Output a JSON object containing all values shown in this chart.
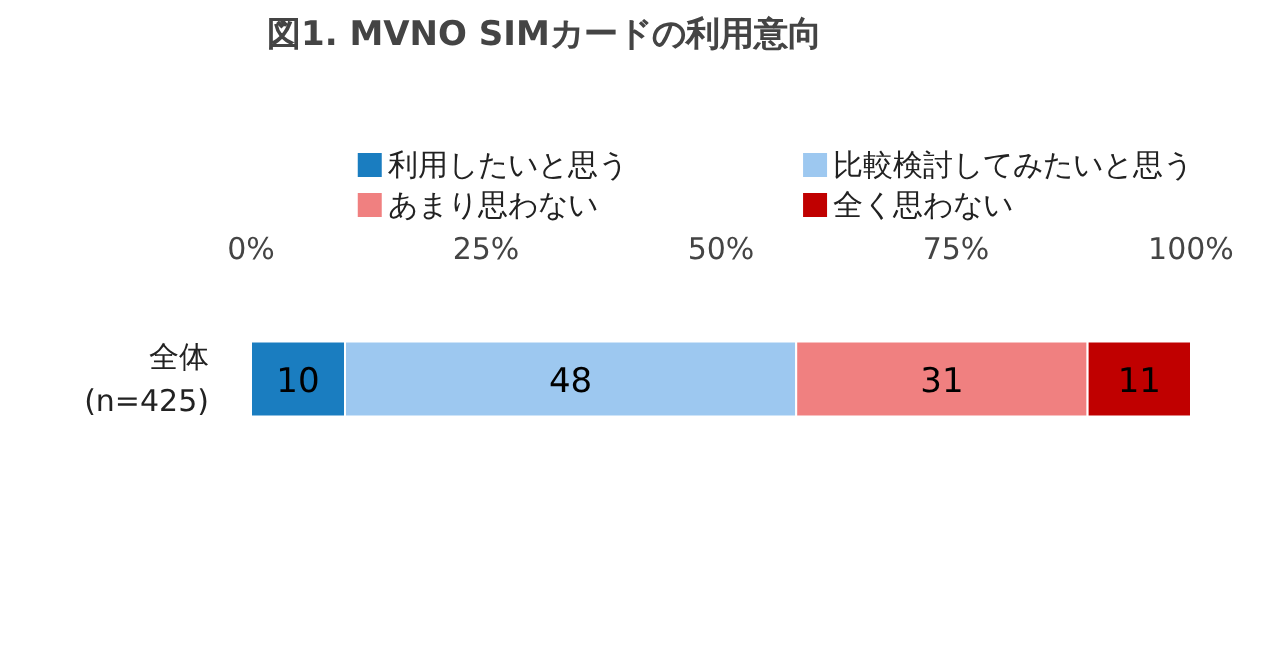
{
  "chart_data": {
    "type": "bar",
    "orientation": "horizontal",
    "stacked": true,
    "title": "図1. MVNO SIMカードの利用意向",
    "categories": [
      "全体\n(n=425)"
    ],
    "series": [
      {
        "name": "利用したいと思う",
        "color": "#1a7dc0",
        "values": [
          10
        ]
      },
      {
        "name": "比較検討してみたいと思う",
        "color": "#9dc8f0",
        "values": [
          48
        ]
      },
      {
        "name": "あまり思わない",
        "color": "#f08080",
        "values": [
          31
        ]
      },
      {
        "name": "全く思わない",
        "color": "#c00000",
        "values": [
          11
        ]
      }
    ],
    "xlim": [
      0,
      100
    ],
    "xticks": [
      {
        "value": 0,
        "label": "0%"
      },
      {
        "value": 25,
        "label": "25%"
      },
      {
        "value": 50,
        "label": "50%"
      },
      {
        "value": 75,
        "label": "75%"
      },
      {
        "value": 100,
        "label": "100%"
      }
    ],
    "data_labels": true,
    "legend": "top",
    "grid": false
  }
}
